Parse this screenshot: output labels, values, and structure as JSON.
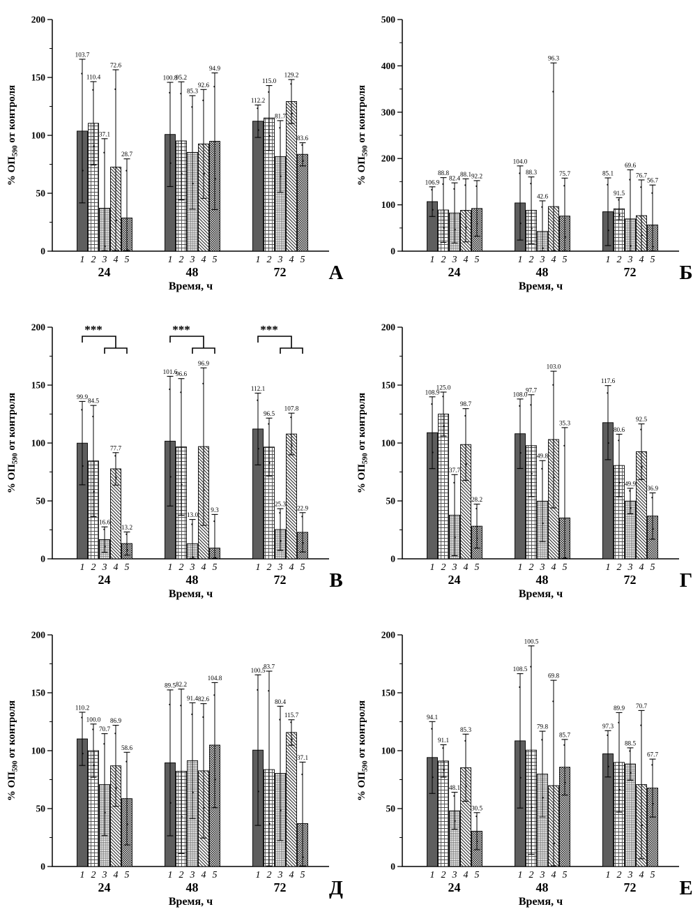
{
  "figure": {
    "background": "#ffffff",
    "panels_order": [
      "А",
      "Б",
      "В",
      "Г",
      "Д",
      "Е"
    ]
  },
  "bar_styles": [
    {
      "index": 1,
      "name": "solid-dark-gray",
      "color": "#5e5e5e"
    },
    {
      "index": 2,
      "name": "square-grid-hatch",
      "color": "#4d4d4d"
    },
    {
      "index": 3,
      "name": "fine-grid-hatch",
      "color": "#6e6e6e"
    },
    {
      "index": 4,
      "name": "diagonal-hatch",
      "color": "#2b2b2b"
    },
    {
      "index": 5,
      "name": "checkerboard-hatch",
      "color": "#1c1c1c"
    }
  ],
  "chart_data": [
    {
      "type": "bar",
      "panel_label": "А",
      "ylabel": {
        "prefix": "% ОП",
        "sub": "590",
        "suffix": " от контроля"
      },
      "xlabel": "Время, ч",
      "ylim": [
        0,
        200
      ],
      "ytick_step": 50,
      "categories": [
        "24",
        "48",
        "72"
      ],
      "bar_labels": [
        "1",
        "2",
        "3",
        "4",
        "5"
      ],
      "groups": [
        {
          "category": "24",
          "values": [
            "103.7",
            "110.4",
            "37.1",
            "72.6",
            "28.7"
          ],
          "errors": [
            62,
            36,
            60,
            84,
            51
          ]
        },
        {
          "category": "48",
          "values": [
            "100.8",
            "95.2",
            "85.3",
            "92.6",
            "94.9"
          ],
          "errors": [
            45,
            51,
            49,
            47,
            59
          ]
        },
        {
          "category": "72",
          "values": [
            "112.2",
            "115.0",
            "81.7",
            "129.2",
            "83.6"
          ],
          "errors": [
            14,
            28,
            31,
            19,
            10
          ]
        }
      ],
      "significance": null
    },
    {
      "type": "bar",
      "panel_label": "Б",
      "ylabel": {
        "prefix": "% ОП",
        "sub": "590",
        "suffix": " от контроля"
      },
      "xlabel": "Время, ч",
      "ylim": [
        0,
        500
      ],
      "ytick_step": 100,
      "categories": [
        "24",
        "48",
        "72"
      ],
      "bar_labels": [
        "1",
        "2",
        "3",
        "4",
        "5"
      ],
      "groups": [
        {
          "category": "24",
          "values": [
            "106.9",
            "88.8",
            "82.4",
            "88.1",
            "92.2"
          ],
          "errors": [
            32,
            70,
            65,
            68,
            60
          ]
        },
        {
          "category": "48",
          "values": [
            "104.0",
            "88.3",
            "42.6",
            "96.3",
            "75.7"
          ],
          "errors": [
            80,
            72,
            66,
            310,
            82
          ]
        },
        {
          "category": "72",
          "values": [
            "85.1",
            "91.5",
            "69.6",
            "76.7",
            "56.7"
          ],
          "errors": [
            73,
            24,
            106,
            77,
            86
          ]
        }
      ],
      "significance": null
    },
    {
      "type": "bar",
      "panel_label": "В",
      "ylabel": {
        "prefix": "% ОП",
        "sub": "590",
        "suffix": " от контроля"
      },
      "xlabel": "Время, ч",
      "ylim": [
        0,
        200
      ],
      "ytick_step": 50,
      "categories": [
        "24",
        "48",
        "72"
      ],
      "bar_labels": [
        "1",
        "2",
        "3",
        "4",
        "5"
      ],
      "groups": [
        {
          "category": "24",
          "values": [
            "99.9",
            "84.5",
            "16.6",
            "77.7",
            "13.2"
          ],
          "errors": [
            36,
            48,
            11,
            14,
            10
          ]
        },
        {
          "category": "48",
          "values": [
            "101.6",
            "96.6",
            "13.0",
            "96.9",
            "9.3"
          ],
          "errors": [
            56,
            59,
            21,
            68,
            29
          ]
        },
        {
          "category": "72",
          "values": [
            "112.1",
            "96.5",
            "25.3",
            "107.8",
            "22.9"
          ],
          "errors": [
            31,
            25,
            18,
            18,
            17
          ]
        }
      ],
      "significance": {
        "label": "***",
        "applies_to_each_group": true
      }
    },
    {
      "type": "bar",
      "panel_label": "Г",
      "ylabel": {
        "prefix": "% ОП",
        "sub": "590",
        "suffix": " от контроля"
      },
      "xlabel": "Время, ч",
      "ylim": [
        0,
        200
      ],
      "ytick_step": 50,
      "categories": [
        "24",
        "48",
        "72"
      ],
      "bar_labels": [
        "1",
        "2",
        "3",
        "4",
        "5"
      ],
      "groups": [
        {
          "category": "24",
          "values": [
            "108.9",
            "125.0",
            "37.7",
            "98.7",
            "28.2"
          ],
          "errors": [
            31,
            19,
            35,
            31,
            19
          ]
        },
        {
          "category": "48",
          "values": [
            "108.0",
            "97.7",
            "49.8",
            "103.0",
            "35.3"
          ],
          "errors": [
            30,
            44,
            35,
            59,
            78
          ]
        },
        {
          "category": "72",
          "values": [
            "117.6",
            "80.6",
            "49.9",
            "92.5",
            "36.9"
          ],
          "errors": [
            32,
            27,
            11,
            24,
            20
          ]
        }
      ],
      "significance": null
    },
    {
      "type": "bar",
      "panel_label": "Д",
      "ylabel": {
        "prefix": "% ОП",
        "sub": "590",
        "suffix": " от контроля"
      },
      "xlabel": "Время, ч",
      "ylim": [
        0,
        200
      ],
      "ytick_step": 50,
      "categories": [
        "24",
        "48",
        "72"
      ],
      "bar_labels": [
        "1",
        "2",
        "3",
        "4",
        "5"
      ],
      "groups": [
        {
          "category": "24",
          "values": [
            "110.2",
            "100.0",
            "70.7",
            "86.9",
            "58.6"
          ],
          "errors": [
            23,
            23,
            44,
            35,
            40
          ]
        },
        {
          "category": "48",
          "values": [
            "89.5",
            "82.2",
            "91.4",
            "82.6",
            "104.8"
          ],
          "errors": [
            63,
            71,
            50,
            58,
            54
          ]
        },
        {
          "category": "72",
          "values": [
            "100.5",
            "83.7",
            "80.4",
            "115.7",
            "37.1"
          ],
          "errors": [
            65,
            85,
            58,
            11,
            53
          ]
        }
      ],
      "significance": null
    },
    {
      "type": "bar",
      "panel_label": "Е",
      "ylabel": {
        "prefix": "% ОП",
        "sub": "590",
        "suffix": " от контроля"
      },
      "xlabel": "Время, ч",
      "ylim": [
        0,
        200
      ],
      "ytick_step": 50,
      "categories": [
        "24",
        "48",
        "72"
      ],
      "bar_labels": [
        "1",
        "2",
        "3",
        "4",
        "5"
      ],
      "groups": [
        {
          "category": "24",
          "values": [
            "94.1",
            "91.1",
            "48.1",
            "85.3",
            "30.5"
          ],
          "errors": [
            31,
            14,
            16,
            29,
            16
          ]
        },
        {
          "category": "48",
          "values": [
            "108.5",
            "100.5",
            "79.8",
            "69.8",
            "85.7"
          ],
          "errors": [
            58,
            90,
            37,
            91,
            24
          ]
        },
        {
          "category": "72",
          "values": [
            "97.3",
            "89.9",
            "88.5",
            "70.7",
            "67.7"
          ],
          "errors": [
            20,
            43,
            14,
            64,
            25
          ]
        }
      ],
      "significance": null
    }
  ]
}
